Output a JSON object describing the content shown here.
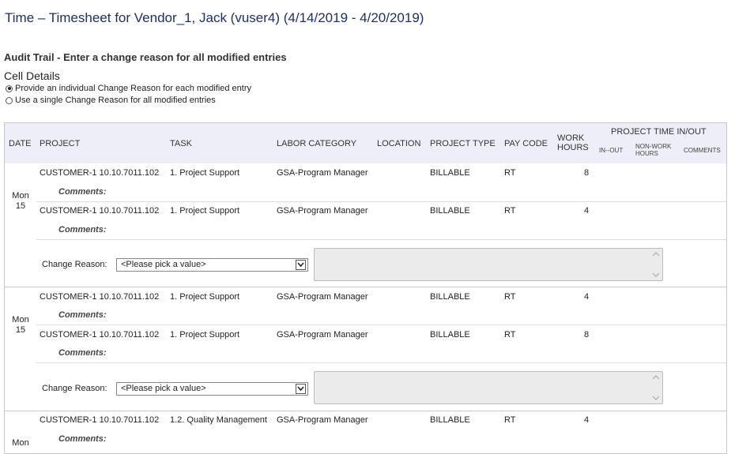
{
  "page": {
    "title": "Time – Timesheet for Vendor_1, Jack (vuser4) (4/14/2019 - 4/20/2019)",
    "audit_heading": "Audit Trail - Enter a change reason for all modified entries",
    "cell_details": "Cell Details",
    "option_individual": "Provide an individual Change Reason for each modified entry",
    "option_single": "Use a single Change Reason for all modified entries"
  },
  "table": {
    "headers": {
      "date": "DATE",
      "project": "PROJECT",
      "task": "TASK",
      "labor": "LABOR CATEGORY",
      "location": "LOCATION",
      "ptype": "PROJECT TYPE",
      "paycode": "PAY CODE",
      "work1": "WORK",
      "work2": "HOURS",
      "ptio": "PROJECT TIME IN/OUT",
      "inout": "IN--OUT",
      "nonwork1": "NON-WORK",
      "nonwork2": "HOURS",
      "comments": "COMMENTS"
    },
    "comments_label": "Comments:",
    "change_reason_label": "Change Reason:",
    "select_value": "<Please pick a value>",
    "groups": [
      {
        "day": "Mon",
        "date": "15",
        "rows": [
          {
            "project": "CUSTOMER-1 10.10.7011.102",
            "task": "1. Project Support",
            "labor": "GSA-Program Manager",
            "ptype": "BILLABLE",
            "paycode": "RT",
            "hours": "8"
          },
          {
            "project": "CUSTOMER-1 10.10.7011.102",
            "task": "1. Project Support",
            "labor": "GSA-Program Manager",
            "ptype": "BILLABLE",
            "paycode": "RT",
            "hours": "4"
          }
        ]
      },
      {
        "day": "Mon",
        "date": "15",
        "rows": [
          {
            "project": "CUSTOMER-1 10.10.7011.102",
            "task": "1. Project Support",
            "labor": "GSA-Program Manager",
            "ptype": "BILLABLE",
            "paycode": "RT",
            "hours": "4"
          },
          {
            "project": "CUSTOMER-1 10.10.7011.102",
            "task": "1. Project Support",
            "labor": "GSA-Program Manager",
            "ptype": "BILLABLE",
            "paycode": "RT",
            "hours": "8"
          }
        ]
      },
      {
        "day": "Mon",
        "rows": [
          {
            "project": "CUSTOMER-1 10.10.7011.102",
            "task": "1.2. Quality Management",
            "labor": "GSA-Program Manager",
            "ptype": "BILLABLE",
            "paycode": "RT",
            "hours": "4"
          }
        ]
      }
    ]
  }
}
